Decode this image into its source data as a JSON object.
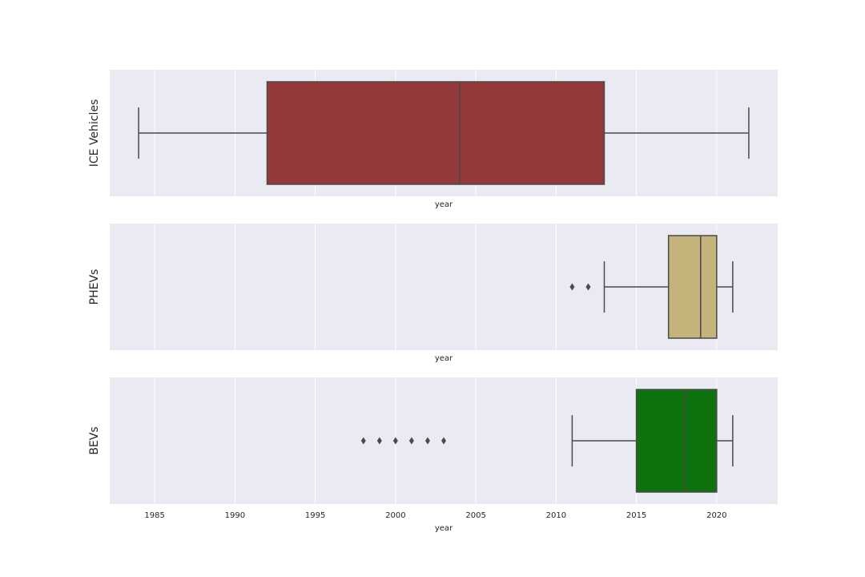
{
  "chart_data": {
    "type": "boxplot",
    "orientation": "horizontal",
    "shared_x_axis": true,
    "xlim": [
      1982.2,
      2023.8
    ],
    "x_ticks": [
      1985,
      1990,
      1995,
      2000,
      2005,
      2010,
      2015,
      2020
    ],
    "x_tick_labels": [
      "1985",
      "1990",
      "1995",
      "2000",
      "2005",
      "2010",
      "2015",
      "2020"
    ],
    "grid": true,
    "panels": [
      {
        "ylabel": "ICE Vehicles",
        "xlabel": "year",
        "color": "#933939",
        "whisker_low": 1984,
        "q1": 1992,
        "median": 2004,
        "q3": 2013,
        "whisker_high": 2022,
        "outliers": []
      },
      {
        "ylabel": "PHEVs",
        "xlabel": "year",
        "color": "#c4b37b",
        "whisker_low": 2013,
        "q1": 2017,
        "median": 2019,
        "q3": 2020,
        "whisker_high": 2021,
        "outliers": [
          2011,
          2012
        ]
      },
      {
        "ylabel": "BEVs",
        "xlabel": "year",
        "color": "#0e720e",
        "whisker_low": 2011,
        "q1": 2015,
        "median": 2018,
        "q3": 2020,
        "whisker_high": 2021,
        "outliers": [
          1998,
          1999,
          2000,
          2001,
          2002,
          2003
        ]
      }
    ]
  }
}
